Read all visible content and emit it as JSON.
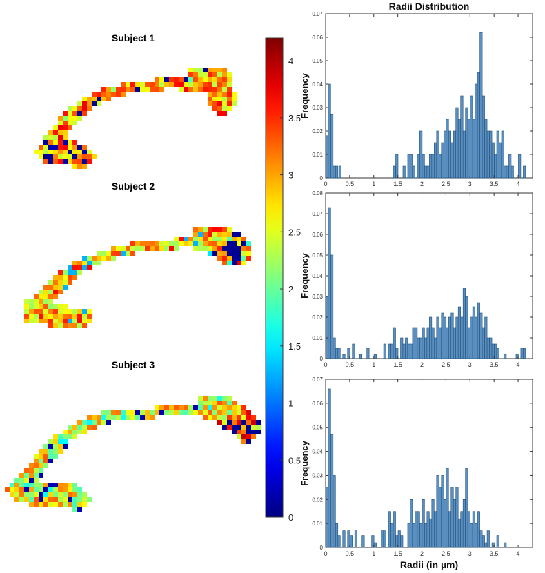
{
  "subjects": [
    {
      "title": "Subject 1"
    },
    {
      "title": "Subject 2"
    },
    {
      "title": "Subject 3"
    }
  ],
  "colorbar": {
    "ticks": [
      "0",
      "0.5",
      "1",
      "1.5",
      "2",
      "2.5",
      "3",
      "3.5",
      "4"
    ],
    "min": 0,
    "max": 4.2,
    "colormap": "jet"
  },
  "chart_data": [
    {
      "type": "bar",
      "title": "Radii Distribution",
      "xlabel": "",
      "ylabel": "Frequency",
      "xlim": [
        0,
        4.3
      ],
      "ylim": [
        0,
        0.07
      ],
      "x_ticks": [
        "0",
        "0.5",
        "1",
        "1.5",
        "2",
        "2.5",
        "3",
        "3.5",
        "4"
      ],
      "y_ticks": [
        "0",
        "0.01",
        "0.02",
        "0.03",
        "0.04",
        "0.05",
        "0.06",
        "0.07"
      ],
      "bar_color": "#5b8fbf",
      "bins": [
        [
          0.03,
          0.018
        ],
        [
          0.08,
          0.04
        ],
        [
          0.13,
          0.027
        ],
        [
          0.18,
          0.005
        ],
        [
          0.23,
          0.005
        ],
        [
          0.3,
          0.005
        ],
        [
          1.43,
          0.005
        ],
        [
          1.48,
          0.01
        ],
        [
          1.63,
          0.005
        ],
        [
          1.73,
          0.01
        ],
        [
          1.78,
          0.01
        ],
        [
          1.83,
          0.005
        ],
        [
          1.93,
          0.01
        ],
        [
          1.98,
          0.02
        ],
        [
          2.03,
          0.01
        ],
        [
          2.08,
          0.005
        ],
        [
          2.13,
          0.005
        ],
        [
          2.18,
          0.01
        ],
        [
          2.23,
          0.01
        ],
        [
          2.28,
          0.015
        ],
        [
          2.33,
          0.02
        ],
        [
          2.38,
          0.01
        ],
        [
          2.43,
          0.015
        ],
        [
          2.48,
          0.02
        ],
        [
          2.53,
          0.025
        ],
        [
          2.58,
          0.02
        ],
        [
          2.63,
          0.015
        ],
        [
          2.68,
          0.02
        ],
        [
          2.73,
          0.03
        ],
        [
          2.78,
          0.025
        ],
        [
          2.83,
          0.035
        ],
        [
          2.88,
          0.02
        ],
        [
          2.93,
          0.03
        ],
        [
          2.98,
          0.025
        ],
        [
          3.03,
          0.035
        ],
        [
          3.08,
          0.025
        ],
        [
          3.13,
          0.04
        ],
        [
          3.18,
          0.045
        ],
        [
          3.23,
          0.062
        ],
        [
          3.28,
          0.035
        ],
        [
          3.33,
          0.025
        ],
        [
          3.38,
          0.02
        ],
        [
          3.43,
          0.02
        ],
        [
          3.48,
          0.015
        ],
        [
          3.53,
          0.01
        ],
        [
          3.58,
          0.02
        ],
        [
          3.63,
          0.015
        ],
        [
          3.68,
          0.02
        ],
        [
          3.73,
          0.005
        ],
        [
          3.78,
          0.005
        ],
        [
          3.83,
          0.01
        ],
        [
          3.88,
          0.005
        ],
        [
          4.03,
          0.01
        ],
        [
          4.13,
          0.005
        ]
      ]
    },
    {
      "type": "bar",
      "title": "",
      "xlabel": "",
      "ylabel": "Frequency",
      "xlim": [
        0,
        4.3
      ],
      "ylim": [
        0,
        0.08
      ],
      "x_ticks": [
        "0",
        "0.5",
        "1",
        "1.5",
        "2",
        "2.5",
        "3",
        "3.5",
        "4"
      ],
      "y_ticks": [
        "0",
        "0.01",
        "0.02",
        "0.03",
        "0.04",
        "0.05",
        "0.06",
        "0.07",
        "0.08"
      ],
      "bar_color": "#5b8fbf",
      "bins": [
        [
          0.03,
          0.03
        ],
        [
          0.08,
          0.073
        ],
        [
          0.13,
          0.05
        ],
        [
          0.18,
          0.01
        ],
        [
          0.23,
          0.005
        ],
        [
          0.28,
          0.005
        ],
        [
          0.38,
          0.002
        ],
        [
          0.48,
          0.005
        ],
        [
          0.58,
          0.007
        ],
        [
          0.73,
          0.002
        ],
        [
          0.88,
          0.005
        ],
        [
          1.03,
          0.002
        ],
        [
          1.23,
          0.007
        ],
        [
          1.33,
          0.007
        ],
        [
          1.38,
          0.007
        ],
        [
          1.43,
          0.015
        ],
        [
          1.48,
          0.005
        ],
        [
          1.58,
          0.01
        ],
        [
          1.63,
          0.007
        ],
        [
          1.68,
          0.01
        ],
        [
          1.73,
          0.007
        ],
        [
          1.78,
          0.007
        ],
        [
          1.83,
          0.015
        ],
        [
          1.88,
          0.015
        ],
        [
          1.93,
          0.01
        ],
        [
          1.98,
          0.01
        ],
        [
          2.03,
          0.015
        ],
        [
          2.08,
          0.01
        ],
        [
          2.13,
          0.015
        ],
        [
          2.18,
          0.02
        ],
        [
          2.23,
          0.015
        ],
        [
          2.28,
          0.01
        ],
        [
          2.33,
          0.02
        ],
        [
          2.38,
          0.015
        ],
        [
          2.43,
          0.022
        ],
        [
          2.48,
          0.02
        ],
        [
          2.53,
          0.015
        ],
        [
          2.58,
          0.02
        ],
        [
          2.63,
          0.022
        ],
        [
          2.68,
          0.015
        ],
        [
          2.73,
          0.02
        ],
        [
          2.78,
          0.025
        ],
        [
          2.83,
          0.02
        ],
        [
          2.88,
          0.034
        ],
        [
          2.93,
          0.03
        ],
        [
          2.98,
          0.015
        ],
        [
          3.03,
          0.02
        ],
        [
          3.08,
          0.025
        ],
        [
          3.13,
          0.02
        ],
        [
          3.18,
          0.027
        ],
        [
          3.23,
          0.022
        ],
        [
          3.28,
          0.015
        ],
        [
          3.33,
          0.02
        ],
        [
          3.38,
          0.01
        ],
        [
          3.43,
          0.01
        ],
        [
          3.48,
          0.007
        ],
        [
          3.53,
          0.007
        ],
        [
          3.58,
          0.005
        ],
        [
          3.73,
          0.002
        ],
        [
          3.98,
          0.002
        ],
        [
          4.08,
          0.005
        ],
        [
          4.13,
          0.005
        ]
      ]
    },
    {
      "type": "bar",
      "title": "",
      "xlabel": "Radii (in µm)",
      "ylabel": "Frequency",
      "xlim": [
        0,
        4.3
      ],
      "ylim": [
        0,
        0.07
      ],
      "x_ticks": [
        "0",
        "0.5",
        "1",
        "1.5",
        "2",
        "2.5",
        "3",
        "3.5",
        "4"
      ],
      "y_ticks": [
        "0",
        "0.01",
        "0.02",
        "0.03",
        "0.04",
        "0.05",
        "0.06",
        "0.07"
      ],
      "bar_color": "#5b8fbf",
      "bins": [
        [
          0.03,
          0.025
        ],
        [
          0.08,
          0.066
        ],
        [
          0.13,
          0.047
        ],
        [
          0.18,
          0.03
        ],
        [
          0.23,
          0.01
        ],
        [
          0.28,
          0.005
        ],
        [
          0.38,
          0.007
        ],
        [
          0.48,
          0.007
        ],
        [
          0.53,
          0.005
        ],
        [
          0.63,
          0.007
        ],
        [
          0.78,
          0.005
        ],
        [
          0.98,
          0.005
        ],
        [
          1.03,
          0.002
        ],
        [
          1.18,
          0.007
        ],
        [
          1.23,
          0.007
        ],
        [
          1.33,
          0.015
        ],
        [
          1.38,
          0.01
        ],
        [
          1.43,
          0.015
        ],
        [
          1.48,
          0.005
        ],
        [
          1.53,
          0.007
        ],
        [
          1.58,
          0.005
        ],
        [
          1.73,
          0.01
        ],
        [
          1.78,
          0.02
        ],
        [
          1.83,
          0.01
        ],
        [
          1.88,
          0.015
        ],
        [
          1.93,
          0.015
        ],
        [
          1.98,
          0.01
        ],
        [
          2.03,
          0.02
        ],
        [
          2.08,
          0.01
        ],
        [
          2.13,
          0.015
        ],
        [
          2.18,
          0.012
        ],
        [
          2.23,
          0.02
        ],
        [
          2.28,
          0.015
        ],
        [
          2.33,
          0.03
        ],
        [
          2.38,
          0.025
        ],
        [
          2.43,
          0.03
        ],
        [
          2.48,
          0.02
        ],
        [
          2.53,
          0.033
        ],
        [
          2.58,
          0.015
        ],
        [
          2.63,
          0.025
        ],
        [
          2.68,
          0.02
        ],
        [
          2.73,
          0.025
        ],
        [
          2.78,
          0.012
        ],
        [
          2.83,
          0.015
        ],
        [
          2.88,
          0.02
        ],
        [
          2.93,
          0.033
        ],
        [
          2.98,
          0.015
        ],
        [
          3.03,
          0.01
        ],
        [
          3.08,
          0.015
        ],
        [
          3.13,
          0.01
        ],
        [
          3.18,
          0.015
        ],
        [
          3.23,
          0.007
        ],
        [
          3.28,
          0.005
        ],
        [
          3.33,
          0.002
        ],
        [
          3.38,
          0.007
        ],
        [
          3.48,
          0.002
        ],
        [
          3.58,
          0.005
        ],
        [
          3.73,
          0.002
        ]
      ]
    }
  ]
}
